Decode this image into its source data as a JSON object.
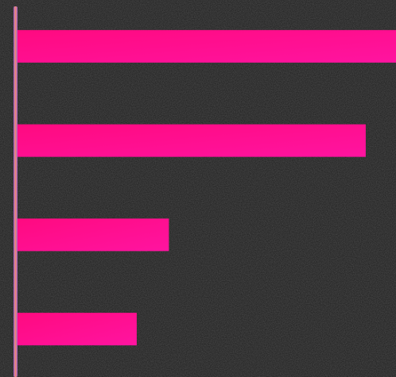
{
  "chart_data": {
    "type": "bar",
    "orientation": "horizontal",
    "categories": [
      null,
      null,
      null,
      null
    ],
    "values": [
      100,
      92,
      40,
      31.5
    ],
    "color": "#ff0f8a",
    "xlim": [
      0,
      100
    ],
    "grid": false
  }
}
